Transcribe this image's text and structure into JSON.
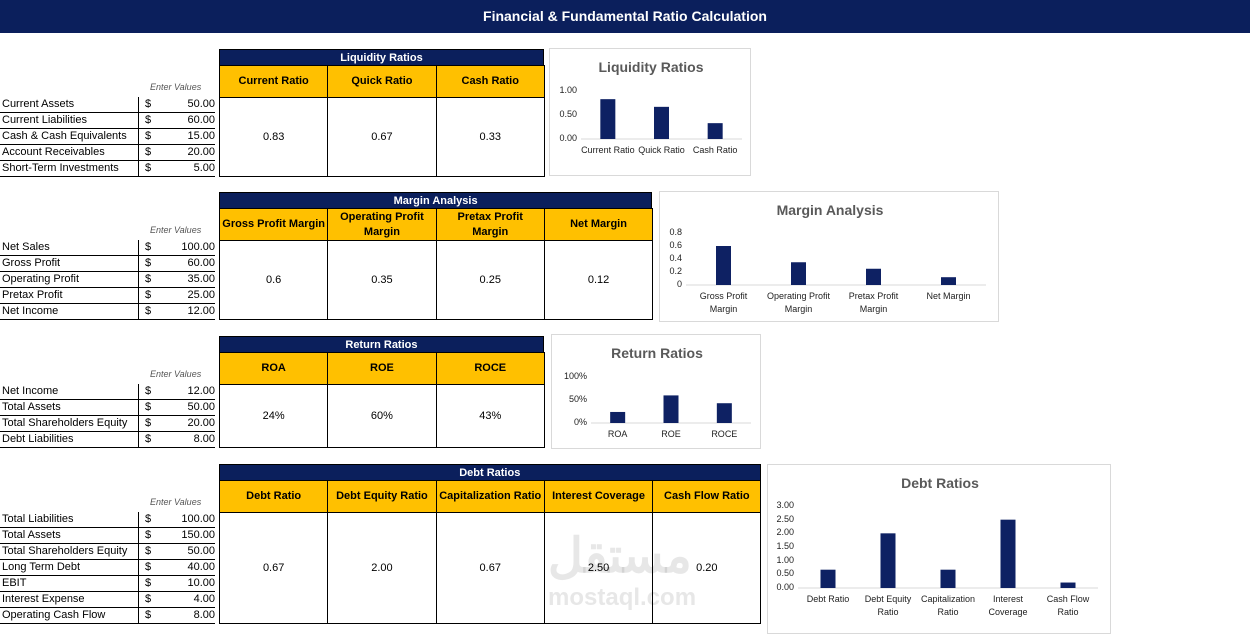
{
  "header": {
    "title": "Financial & Fundamental Ratio Calculation"
  },
  "currency": "$",
  "enter_label": "Enter Values",
  "watermark": {
    "arabic": "مستقل",
    "latin": "mostaql.com"
  },
  "sections": [
    {
      "title": "Liquidity Ratios",
      "inputs": [
        {
          "label": "Current Assets",
          "value": "50.00"
        },
        {
          "label": "Current Liabilities",
          "value": "60.00"
        },
        {
          "label": "Cash & Cash Equivalents",
          "value": "15.00"
        },
        {
          "label": "Account Receivables",
          "value": "20.00"
        },
        {
          "label": "Short-Term Investments",
          "value": "5.00"
        }
      ],
      "columns": [
        "Current Ratio",
        "Quick Ratio",
        "Cash Ratio"
      ],
      "results": [
        "0.83",
        "0.67",
        "0.33"
      ],
      "chart": {
        "type": "bar",
        "title": "Liquidity Ratios",
        "categories": [
          "Current Ratio",
          "Quick Ratio",
          "Cash Ratio"
        ],
        "values": [
          0.83,
          0.67,
          0.33
        ],
        "color": "#0e2163",
        "ylim": [
          0,
          1
        ],
        "yticks": [
          {
            "value": 0,
            "label": "0.00"
          },
          {
            "value": 0.5,
            "label": "0.50"
          },
          {
            "value": 1,
            "label": "1.00"
          }
        ]
      }
    },
    {
      "title": "Margin Analysis",
      "inputs": [
        {
          "label": "Net Sales",
          "value": "100.00"
        },
        {
          "label": "Gross Profit",
          "value": "60.00"
        },
        {
          "label": "Operating Profit",
          "value": "35.00"
        },
        {
          "label": "Pretax Profit",
          "value": "25.00"
        },
        {
          "label": "Net Income",
          "value": "12.00"
        }
      ],
      "columns": [
        "Gross Profit Margin",
        "Operating Profit Margin",
        "Pretax Profit Margin",
        "Net Margin"
      ],
      "results": [
        "0.6",
        "0.35",
        "0.25",
        "0.12"
      ],
      "chart": {
        "type": "bar",
        "title": "Margin Analysis",
        "categories": [
          "Gross Profit Margin",
          "Operating Profit Margin",
          "Pretax Profit Margin",
          "Net Margin"
        ],
        "values": [
          0.6,
          0.35,
          0.25,
          0.12
        ],
        "color": "#0e2163",
        "ylim": [
          0,
          0.8
        ],
        "yticks": [
          0,
          0.2,
          0.4,
          0.6,
          0.8
        ]
      }
    },
    {
      "title": "Return Ratios",
      "inputs": [
        {
          "label": "Net Income",
          "value": "12.00"
        },
        {
          "label": "Total Assets",
          "value": "50.00"
        },
        {
          "label": "Total Shareholders Equity",
          "value": "20.00"
        },
        {
          "label": "Debt Liabilities",
          "value": "8.00"
        }
      ],
      "columns": [
        "ROA",
        "ROE",
        "ROCE"
      ],
      "results": [
        "24%",
        "60%",
        "43%"
      ],
      "chart": {
        "type": "bar",
        "title": "Return Ratios",
        "categories": [
          "ROA",
          "ROE",
          "ROCE"
        ],
        "values": [
          0.24,
          0.6,
          0.43
        ],
        "color": "#0e2163",
        "ylim": [
          0,
          1
        ],
        "yticks": [
          {
            "value": 0,
            "label": "0%"
          },
          {
            "value": 0.5,
            "label": "50%"
          },
          {
            "value": 1,
            "label": "100%"
          }
        ]
      }
    },
    {
      "title": "Debt Ratios",
      "inputs": [
        {
          "label": "Total Liabilities",
          "value": "100.00"
        },
        {
          "label": "Total Assets",
          "value": "150.00"
        },
        {
          "label": "Total Shareholders Equity",
          "value": "50.00"
        },
        {
          "label": "Long Term Debt",
          "value": "40.00"
        },
        {
          "label": "EBIT",
          "value": "10.00"
        },
        {
          "label": "Interest Expense",
          "value": "4.00"
        },
        {
          "label": "Operating Cash Flow",
          "value": "8.00"
        }
      ],
      "columns": [
        "Debt Ratio",
        "Debt Equity Ratio",
        "Capitalization Ratio",
        "Interest Coverage",
        "Cash Flow Ratio"
      ],
      "results": [
        "0.67",
        "2.00",
        "0.67",
        "2.50",
        "0.20"
      ],
      "chart": {
        "type": "bar",
        "title": "Debt Ratios",
        "categories": [
          "Debt Ratio",
          "Debt Equity Ratio",
          "Capitalization Ratio",
          "Interest Coverage",
          "Cash Flow Ratio"
        ],
        "values": [
          0.67,
          2.0,
          0.67,
          2.5,
          0.2
        ],
        "color": "#0e2163",
        "ylim": [
          0,
          3
        ],
        "yticks": [
          {
            "value": 0,
            "label": "0.00"
          },
          {
            "value": 0.5,
            "label": "0.50"
          },
          {
            "value": 1,
            "label": "1.00"
          },
          {
            "value": 1.5,
            "label": "1.50"
          },
          {
            "value": 2,
            "label": "2.00"
          },
          {
            "value": 2.5,
            "label": "2.50"
          },
          {
            "value": 3,
            "label": "3.00"
          }
        ]
      }
    }
  ]
}
